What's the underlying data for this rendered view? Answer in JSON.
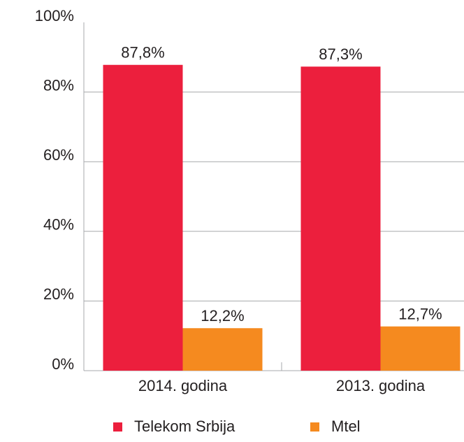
{
  "chart_data": {
    "type": "bar",
    "categories": [
      "2014. godina",
      "2013. godina"
    ],
    "series": [
      {
        "name": "Telekom Srbija",
        "color": "#ec1f3d",
        "values": [
          87.8,
          87.3
        ],
        "value_labels": [
          "87,8%",
          "87,3%"
        ]
      },
      {
        "name": "Mtel",
        "color": "#f58a1f",
        "values": [
          12.2,
          12.7
        ],
        "value_labels": [
          "12,2%",
          "12,7%"
        ]
      }
    ],
    "ylim": [
      0,
      100
    ],
    "yticks": [
      {
        "value": 0,
        "label": "0%"
      },
      {
        "value": 20,
        "label": "20%"
      },
      {
        "value": 40,
        "label": "40%"
      },
      {
        "value": 60,
        "label": "60%"
      },
      {
        "value": 80,
        "label": "80%"
      },
      {
        "value": 100,
        "label": "100%"
      }
    ],
    "grid": true,
    "legend": "bottom"
  }
}
